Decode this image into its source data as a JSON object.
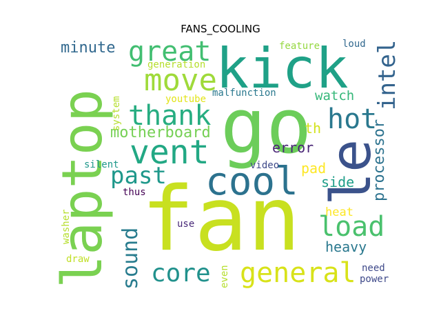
{
  "title": "FANS_COOLING",
  "words": [
    {
      "text": "fan",
      "color": "#c8e020",
      "vertical": false
    },
    {
      "text": "laptop",
      "color": "#7ad151",
      "vertical": true
    },
    {
      "text": "go",
      "color": "#6ccd5a",
      "vertical": false
    },
    {
      "text": "kick",
      "color": "#1fa187",
      "vertical": false
    },
    {
      "text": "le",
      "color": "#3b528b",
      "vertical": true
    },
    {
      "text": "cool",
      "color": "#2c728e",
      "vertical": false
    },
    {
      "text": "vent",
      "color": "#22a884",
      "vertical": false
    },
    {
      "text": "great",
      "color": "#42be71",
      "vertical": false
    },
    {
      "text": "move",
      "color": "#9fda3a",
      "vertical": false
    },
    {
      "text": "thank",
      "color": "#27ad81",
      "vertical": false
    },
    {
      "text": "hot",
      "color": "#2a788e",
      "vertical": false
    },
    {
      "text": "intel",
      "color": "#33638d",
      "vertical": true
    },
    {
      "text": "load",
      "color": "#4ac16d",
      "vertical": false
    },
    {
      "text": "general",
      "color": "#d8e219",
      "vertical": false
    },
    {
      "text": "core",
      "color": "#21918c",
      "vertical": false
    },
    {
      "text": "sound",
      "color": "#287c8e",
      "vertical": true
    },
    {
      "text": "past",
      "color": "#1f988b",
      "vertical": false
    },
    {
      "text": "minute",
      "color": "#31688e",
      "vertical": false
    },
    {
      "text": "motherboard",
      "color": "#75d054",
      "vertical": false
    },
    {
      "text": "processor",
      "color": "#2c728e",
      "vertical": true
    },
    {
      "text": "error",
      "color": "#482475",
      "vertical": false
    },
    {
      "text": "watch",
      "color": "#35b779",
      "vertical": false
    },
    {
      "text": "heavy",
      "color": "#2a788e",
      "vertical": false
    },
    {
      "text": "side",
      "color": "#1f9e89",
      "vertical": false
    },
    {
      "text": "pad",
      "color": "#fde725",
      "vertical": false
    },
    {
      "text": "th",
      "color": "#d2e21b",
      "vertical": false
    },
    {
      "text": "heat",
      "color": "#fde725",
      "vertical": false
    },
    {
      "text": "generation",
      "color": "#b5de2b",
      "vertical": false
    },
    {
      "text": "malfunction",
      "color": "#2a788e",
      "vertical": false
    },
    {
      "text": "youtube",
      "color": "#e2e418",
      "vertical": false
    },
    {
      "text": "feature",
      "color": "#95d840",
      "vertical": false
    },
    {
      "text": "loud",
      "color": "#31688e",
      "vertical": false
    },
    {
      "text": "system",
      "color": "#b5de2b",
      "vertical": true
    },
    {
      "text": "silent",
      "color": "#1f988b",
      "vertical": false
    },
    {
      "text": "video",
      "color": "#3e4989",
      "vertical": false
    },
    {
      "text": "thus",
      "color": "#440154",
      "vertical": false
    },
    {
      "text": "use",
      "color": "#482878",
      "vertical": false
    },
    {
      "text": "washer",
      "color": "#b5de2b",
      "vertical": true
    },
    {
      "text": "draw",
      "color": "#c0df25",
      "vertical": false
    },
    {
      "text": "even",
      "color": "#b5de2b",
      "vertical": true
    },
    {
      "text": "need",
      "color": "#3e4989",
      "vertical": false
    },
    {
      "text": "power",
      "color": "#3e4989",
      "vertical": false
    }
  ]
}
